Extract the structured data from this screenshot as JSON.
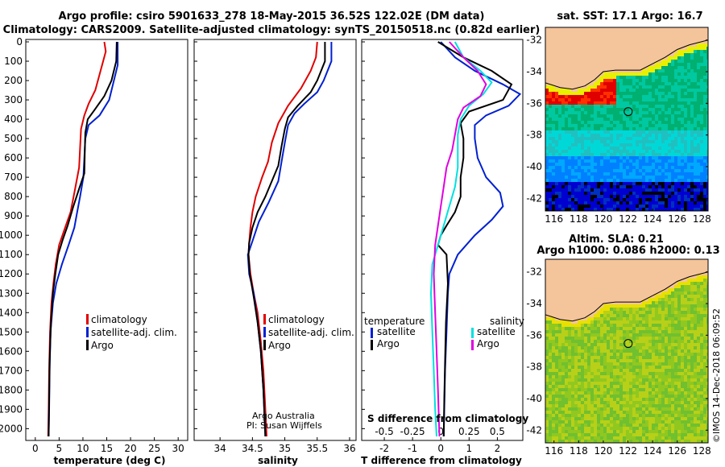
{
  "title_line1": "Argo profile: csiro 5901633_278 18-May-2015 36.52S 122.02E (DM data)",
  "title_line2": "Climatology: CARS2009. Satellite-adjusted climatology: synTS_20150518.nc (0.82d earlier)",
  "colors": {
    "climatology": "#e00000",
    "satellite": "#0020d0",
    "argo": "#000000",
    "sat_salinity": "#00e0e0",
    "argo_salinity": "#e000e0",
    "land": "#f4c49a"
  },
  "depth_ticks": [
    "0",
    "100",
    "200",
    "300",
    "400",
    "500",
    "600",
    "700",
    "800",
    "900",
    "1000",
    "1100",
    "1200",
    "1300",
    "1400",
    "1500",
    "1600",
    "1700",
    "1800",
    "1900",
    "2000"
  ],
  "chart_data": [
    {
      "type": "line",
      "xlabel": "temperature (deg C)",
      "xticks": [
        "0",
        "5",
        "10",
        "15",
        "20",
        "25",
        "30"
      ],
      "xlim": [
        -2,
        32
      ],
      "ylim": [
        2060,
        0
      ],
      "series": [
        {
          "name": "climatology",
          "color": "#e00000",
          "points": [
            [
              14.5,
              0
            ],
            [
              14.8,
              50
            ],
            [
              13.7,
              150
            ],
            [
              12.6,
              250
            ],
            [
              11.2,
              320
            ],
            [
              10.3,
              380
            ],
            [
              9.6,
              450
            ],
            [
              9.4,
              550
            ],
            [
              9.2,
              650
            ],
            [
              8.2,
              780
            ],
            [
              7.4,
              880
            ],
            [
              6.4,
              950
            ],
            [
              5.0,
              1050
            ],
            [
              4.3,
              1150
            ],
            [
              3.8,
              1250
            ],
            [
              3.4,
              1350
            ],
            [
              3.1,
              1500
            ],
            [
              2.9,
              1700
            ],
            [
              2.8,
              1900
            ],
            [
              2.7,
              2040
            ]
          ]
        },
        {
          "name": "satellite-adj. clim.",
          "color": "#0020d0",
          "points": [
            [
              17.3,
              0
            ],
            [
              17.3,
              120
            ],
            [
              16.5,
              200
            ],
            [
              15.5,
              300
            ],
            [
              13.5,
              380
            ],
            [
              11.2,
              430
            ],
            [
              10.5,
              500
            ],
            [
              10.3,
              600
            ],
            [
              10.1,
              700
            ],
            [
              9.4,
              800
            ],
            [
              8.8,
              880
            ],
            [
              8.2,
              960
            ],
            [
              7.0,
              1050
            ],
            [
              5.6,
              1150
            ],
            [
              4.4,
              1250
            ],
            [
              3.7,
              1350
            ],
            [
              3.2,
              1500
            ],
            [
              3.0,
              1700
            ],
            [
              2.9,
              1900
            ],
            [
              2.8,
              2040
            ]
          ]
        },
        {
          "name": "Argo",
          "color": "#000000",
          "points": [
            [
              17.1,
              0
            ],
            [
              17.0,
              100
            ],
            [
              16.0,
              200
            ],
            [
              14.5,
              280
            ],
            [
              12.5,
              350
            ],
            [
              11.0,
              400
            ],
            [
              10.5,
              470
            ],
            [
              10.4,
              560
            ],
            [
              10.3,
              680
            ],
            [
              9.2,
              760
            ],
            [
              8.0,
              850
            ],
            [
              6.8,
              950
            ],
            [
              5.8,
              1020
            ],
            [
              4.8,
              1100
            ],
            [
              4.2,
              1200
            ],
            [
              3.7,
              1300
            ],
            [
              3.3,
              1450
            ],
            [
              3.0,
              1650
            ],
            [
              2.9,
              1850
            ],
            [
              2.8,
              2040
            ]
          ]
        }
      ],
      "legend": [
        "climatology",
        "satellite-adj. clim.",
        "Argo"
      ]
    },
    {
      "type": "line",
      "xlabel": "salinity",
      "xticks": [
        "34",
        "34.5",
        "35",
        "35.5",
        "36"
      ],
      "xlim": [
        33.6,
        36.1
      ],
      "ylim": [
        2060,
        0
      ],
      "series": [
        {
          "name": "climatology",
          "color": "#e00000",
          "points": [
            [
              35.5,
              0
            ],
            [
              35.48,
              80
            ],
            [
              35.4,
              150
            ],
            [
              35.25,
              240
            ],
            [
              35.05,
              330
            ],
            [
              34.9,
              420
            ],
            [
              34.8,
              520
            ],
            [
              34.74,
              620
            ],
            [
              34.65,
              700
            ],
            [
              34.55,
              800
            ],
            [
              34.5,
              880
            ],
            [
              34.47,
              960
            ],
            [
              34.45,
              1040
            ],
            [
              34.44,
              1100
            ],
            [
              34.47,
              1200
            ],
            [
              34.52,
              1300
            ],
            [
              34.58,
              1400
            ],
            [
              34.63,
              1550
            ],
            [
              34.67,
              1700
            ],
            [
              34.7,
              1900
            ],
            [
              34.72,
              2040
            ]
          ]
        },
        {
          "name": "satellite-adj. clim.",
          "color": "#0020d0",
          "points": [
            [
              35.72,
              0
            ],
            [
              35.72,
              100
            ],
            [
              35.6,
              200
            ],
            [
              35.5,
              260
            ],
            [
              35.3,
              320
            ],
            [
              35.15,
              370
            ],
            [
              35.05,
              430
            ],
            [
              35.0,
              520
            ],
            [
              34.95,
              620
            ],
            [
              34.9,
              720
            ],
            [
              34.75,
              830
            ],
            [
              34.6,
              930
            ],
            [
              34.5,
              1030
            ],
            [
              34.43,
              1100
            ],
            [
              34.45,
              1200
            ],
            [
              34.52,
              1300
            ],
            [
              34.58,
              1450
            ],
            [
              34.63,
              1600
            ],
            [
              34.67,
              1800
            ],
            [
              34.7,
              2040
            ]
          ]
        },
        {
          "name": "Argo",
          "color": "#000000",
          "points": [
            [
              35.62,
              0
            ],
            [
              35.62,
              100
            ],
            [
              35.5,
              200
            ],
            [
              35.4,
              260
            ],
            [
              35.2,
              330
            ],
            [
              35.05,
              390
            ],
            [
              35.0,
              450
            ],
            [
              34.95,
              540
            ],
            [
              34.9,
              640
            ],
            [
              34.8,
              720
            ],
            [
              34.7,
              800
            ],
            [
              34.58,
              880
            ],
            [
              34.5,
              960
            ],
            [
              34.45,
              1040
            ],
            [
              34.44,
              1100
            ],
            [
              34.46,
              1200
            ],
            [
              34.52,
              1320
            ],
            [
              34.58,
              1450
            ],
            [
              34.63,
              1600
            ],
            [
              34.67,
              1800
            ],
            [
              34.7,
              2040
            ]
          ]
        }
      ],
      "legend": [
        "climatology",
        "satellite-adj. clim.",
        "Argo"
      ],
      "annotation1": "Argo Australia",
      "annotation2": "PI: Susan Wijffels"
    },
    {
      "type": "line",
      "xlabel": "T difference from climatology",
      "xlabel2": "S difference from climatology",
      "xticks": [
        "-2",
        "-1",
        "0",
        "1",
        "2"
      ],
      "xticks2": [
        "-0.5",
        "-0.25",
        "0",
        "0.25",
        "0.5"
      ],
      "xlim": [
        -2.8,
        2.9
      ],
      "ylim": [
        2060,
        0
      ],
      "series": [
        {
          "name": "temperature satellite",
          "color": "#0020d0",
          "points": [
            [
              0,
              0
            ],
            [
              0.5,
              80
            ],
            [
              1.2,
              150
            ],
            [
              2.2,
              220
            ],
            [
              2.8,
              270
            ],
            [
              2.4,
              330
            ],
            [
              1.6,
              380
            ],
            [
              1.2,
              430
            ],
            [
              1.2,
              500
            ],
            [
              1.3,
              600
            ],
            [
              1.6,
              700
            ],
            [
              2.1,
              780
            ],
            [
              2.2,
              850
            ],
            [
              1.8,
              920
            ],
            [
              1.2,
              1000
            ],
            [
              0.6,
              1100
            ],
            [
              0.3,
              1200
            ],
            [
              0.25,
              1300
            ],
            [
              0.2,
              1500
            ],
            [
              0.15,
              1700
            ],
            [
              0.12,
              1900
            ],
            [
              0.1,
              2040
            ]
          ]
        },
        {
          "name": "temperature Argo",
          "color": "#000000",
          "points": [
            [
              -0.1,
              0
            ],
            [
              0.8,
              80
            ],
            [
              1.8,
              150
            ],
            [
              2.5,
              220
            ],
            [
              2.2,
              300
            ],
            [
              1.0,
              360
            ],
            [
              0.7,
              420
            ],
            [
              0.8,
              500
            ],
            [
              0.8,
              600
            ],
            [
              0.7,
              700
            ],
            [
              0.7,
              800
            ],
            [
              0.5,
              880
            ],
            [
              0.2,
              950
            ],
            [
              0.0,
              1000
            ],
            [
              -0.1,
              1050
            ],
            [
              0.2,
              1100
            ],
            [
              0.25,
              1250
            ],
            [
              0.18,
              1450
            ],
            [
              0.15,
              1650
            ],
            [
              0.12,
              1850
            ],
            [
              0.1,
              2040
            ]
          ]
        },
        {
          "name": "salinity satellite",
          "color": "#00e0e0",
          "points": [
            [
              0.5,
              0
            ],
            [
              0.8,
              80
            ],
            [
              1.4,
              150
            ],
            [
              1.8,
              210
            ],
            [
              1.5,
              270
            ],
            [
              1.0,
              330
            ],
            [
              0.7,
              400
            ],
            [
              0.6,
              480
            ],
            [
              0.6,
              560
            ],
            [
              0.6,
              650
            ],
            [
              0.5,
              750
            ],
            [
              0.3,
              850
            ],
            [
              0.1,
              950
            ],
            [
              -0.1,
              1050
            ],
            [
              -0.3,
              1150
            ],
            [
              -0.35,
              1300
            ],
            [
              -0.3,
              1500
            ],
            [
              -0.25,
              1700
            ],
            [
              -0.2,
              1900
            ],
            [
              -0.15,
              2040
            ]
          ]
        },
        {
          "name": "salinity Argo",
          "color": "#e000e0",
          "points": [
            [
              0.3,
              0
            ],
            [
              0.8,
              80
            ],
            [
              1.3,
              150
            ],
            [
              1.6,
              220
            ],
            [
              1.4,
              280
            ],
            [
              0.8,
              340
            ],
            [
              0.6,
              400
            ],
            [
              0.5,
              480
            ],
            [
              0.4,
              560
            ],
            [
              0.2,
              650
            ],
            [
              0.1,
              750
            ],
            [
              0.0,
              850
            ],
            [
              -0.1,
              950
            ],
            [
              -0.2,
              1050
            ],
            [
              -0.25,
              1200
            ],
            [
              -0.2,
              1400
            ],
            [
              -0.15,
              1600
            ],
            [
              -0.1,
              1800
            ],
            [
              -0.05,
              2040
            ]
          ]
        }
      ],
      "legend_left_title": "temperature",
      "legend_right_title": "salinity",
      "legend_items": [
        "satellite",
        "Argo"
      ]
    }
  ],
  "map_top": {
    "title": "sat. SST: 17.1 Argo: 16.7",
    "yticks": [
      "-32",
      "-34",
      "-36",
      "-38",
      "-40",
      "-42"
    ],
    "xticks": [
      "116",
      "118",
      "120",
      "122",
      "124",
      "126",
      "128"
    ]
  },
  "map_bottom": {
    "title1": "Altim. SLA: 0.21",
    "title2": "Argo h1000: 0.086 h2000: 0.13",
    "yticks": [
      "-32",
      "-34",
      "-36",
      "-38",
      "-40",
      "-42"
    ],
    "xticks": [
      "116",
      "118",
      "120",
      "122",
      "124",
      "126",
      "128"
    ]
  },
  "watermark": "©IMOS 14-Dec-2018 06:09:52"
}
